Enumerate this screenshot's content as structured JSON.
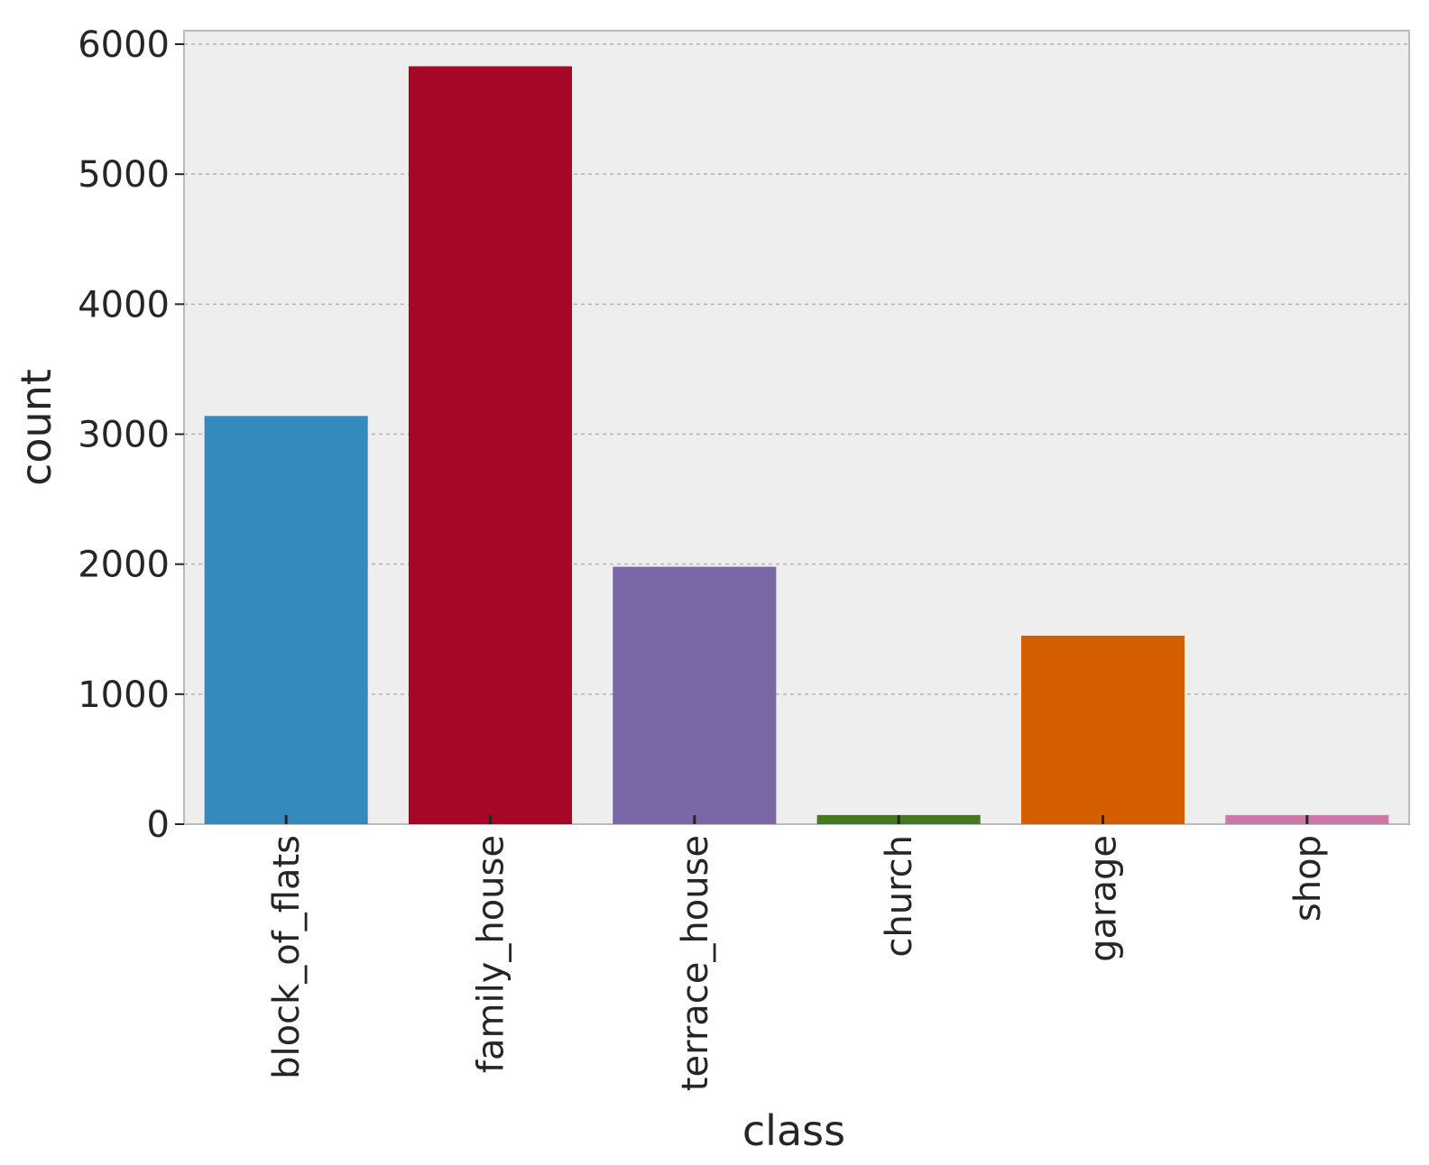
{
  "chart_data": {
    "type": "bar",
    "title": "",
    "xlabel": "class",
    "ylabel": "count",
    "categories": [
      "block_of_flats",
      "family_house",
      "terrace_house",
      "church",
      "garage",
      "shop"
    ],
    "values": [
      3140,
      5830,
      1980,
      70,
      1450,
      70
    ],
    "colors": [
      "#348ABD",
      "#A60628",
      "#7A68A6",
      "#467821",
      "#D55E00",
      "#CC79A7"
    ],
    "ylim": [
      0,
      6100
    ],
    "yticks": [
      0,
      1000,
      2000,
      3000,
      4000,
      5000,
      6000
    ],
    "ytick_labels": [
      "0",
      "1000",
      "2000",
      "3000",
      "4000",
      "5000",
      "6000"
    ],
    "grid": true,
    "background": "#EEEEEE"
  }
}
